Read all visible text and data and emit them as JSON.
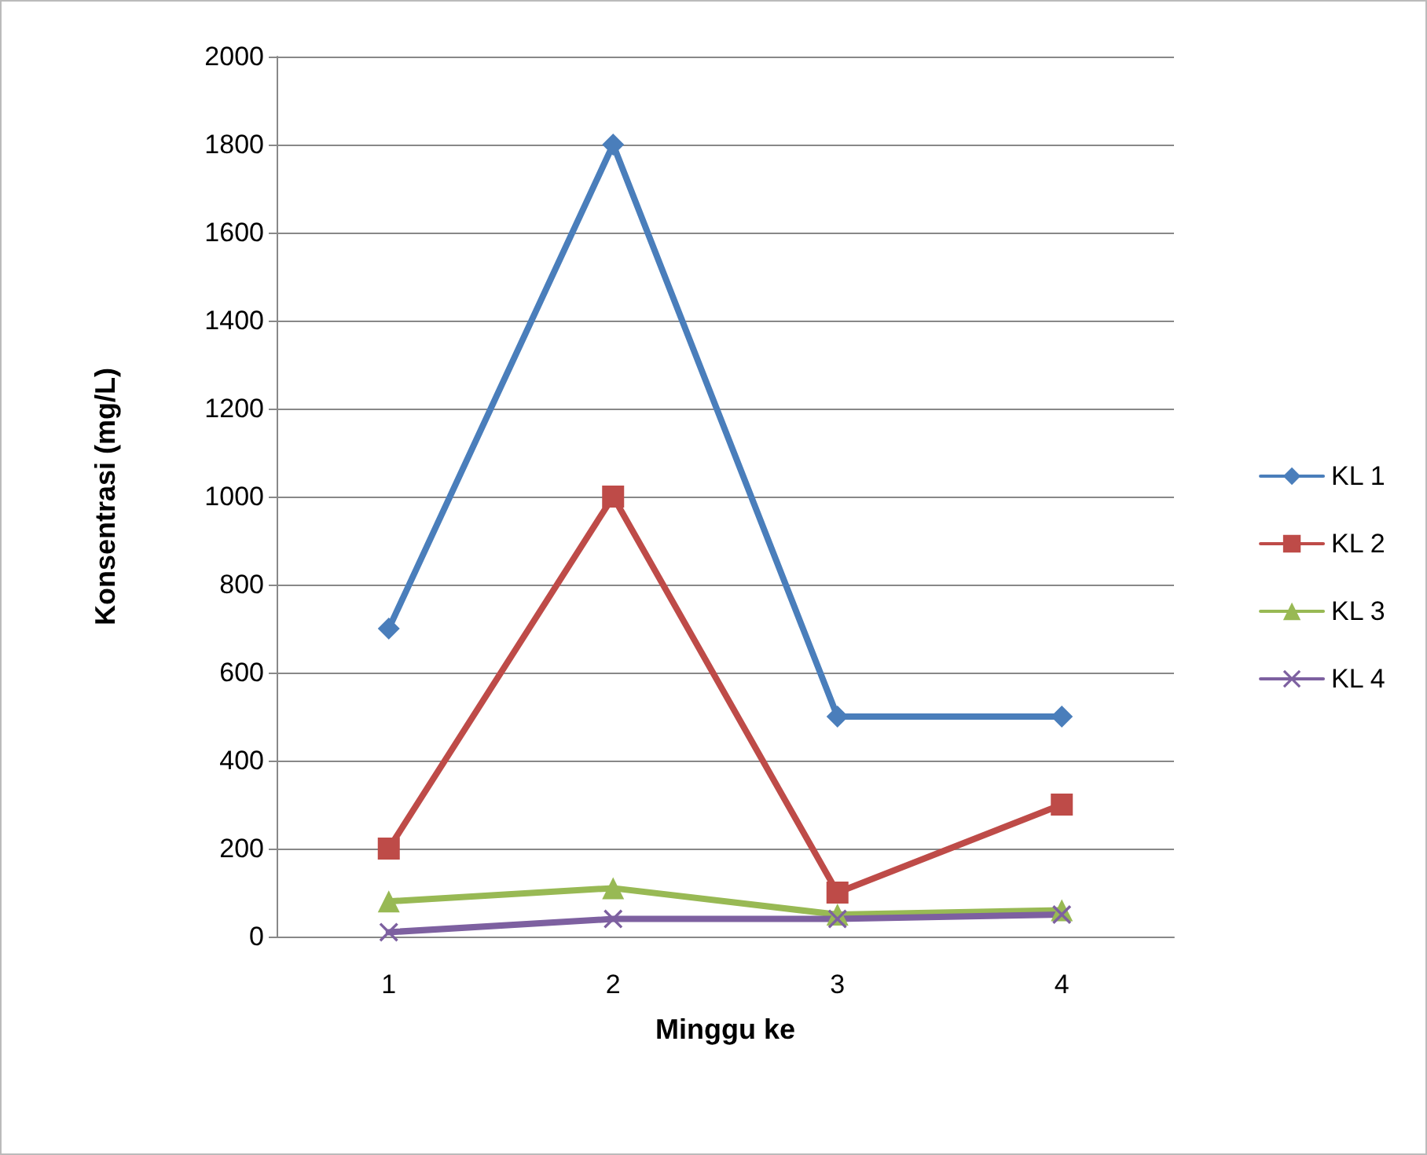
{
  "chart_data": {
    "type": "line",
    "xlabel": "Minggu ke",
    "ylabel": "Konsentrasi (mg/L)",
    "categories": [
      "1",
      "2",
      "3",
      "4"
    ],
    "series": [
      {
        "name": "KL 1",
        "color": "#4a7ebb",
        "marker": "diamond",
        "values": [
          700,
          1800,
          500,
          500
        ]
      },
      {
        "name": "KL 2",
        "color": "#be4b48",
        "marker": "square",
        "values": [
          200,
          1000,
          100,
          300
        ]
      },
      {
        "name": "KL 3",
        "color": "#98b954",
        "marker": "triangle",
        "values": [
          80,
          110,
          50,
          60
        ]
      },
      {
        "name": "KL 4",
        "color": "#7d60a0",
        "marker": "cross",
        "values": [
          10,
          40,
          40,
          50
        ]
      }
    ],
    "ylim": [
      0,
      2000
    ],
    "yticks": [
      0,
      200,
      400,
      600,
      800,
      1000,
      1200,
      1400,
      1600,
      1800,
      2000
    ],
    "grid": "y",
    "legend": "right",
    "line_style": "solid"
  }
}
